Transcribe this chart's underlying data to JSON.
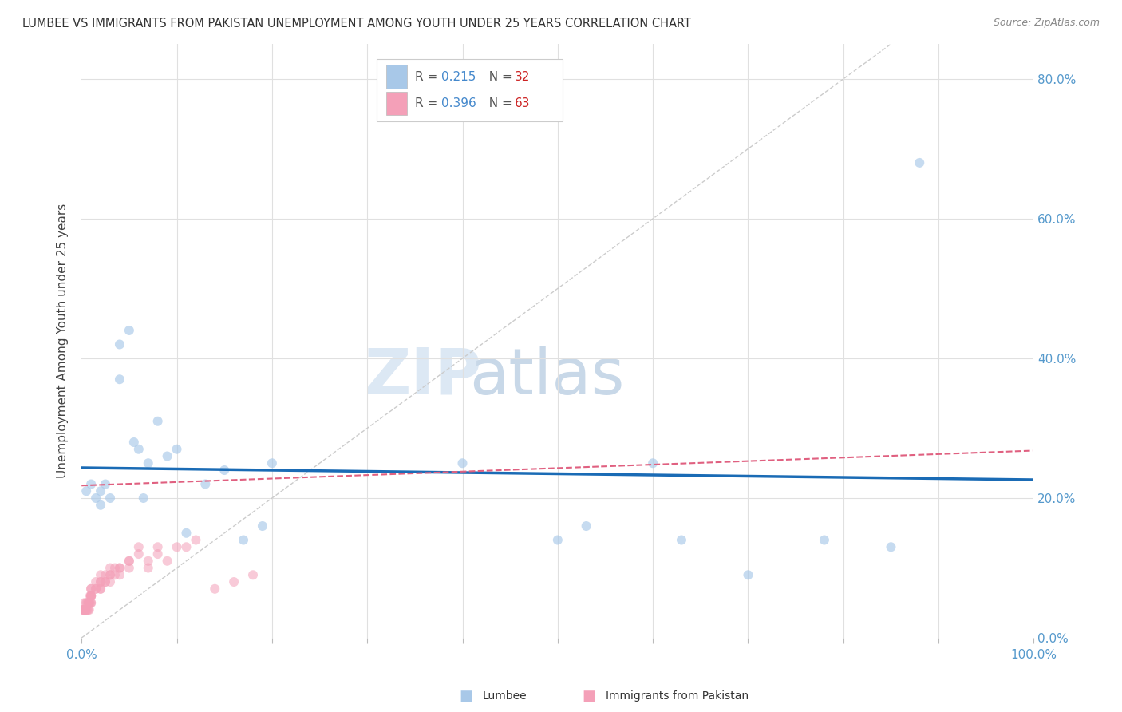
{
  "title": "LUMBEE VS IMMIGRANTS FROM PAKISTAN UNEMPLOYMENT AMONG YOUTH UNDER 25 YEARS CORRELATION CHART",
  "source": "Source: ZipAtlas.com",
  "ylabel": "Unemployment Among Youth under 25 years",
  "watermark_zip": "ZIP",
  "watermark_atlas": "atlas",
  "legend_lumbee_r_label": "R = ",
  "legend_lumbee_r_val": "0.215",
  "legend_lumbee_n_label": "  N = ",
  "legend_lumbee_n_val": "32",
  "legend_pakistan_r_label": "R = ",
  "legend_pakistan_r_val": "0.396",
  "legend_pakistan_n_label": "  N = ",
  "legend_pakistan_n_val": "63",
  "lumbee_color": "#a8c8e8",
  "lumbee_line_color": "#1a6bb5",
  "pakistan_color": "#f4a0b8",
  "pakistan_line_color": "#e06080",
  "lumbee_x": [
    0.005,
    0.01,
    0.015,
    0.02,
    0.02,
    0.025,
    0.03,
    0.04,
    0.04,
    0.05,
    0.055,
    0.06,
    0.065,
    0.07,
    0.08,
    0.09,
    0.1,
    0.11,
    0.13,
    0.15,
    0.17,
    0.19,
    0.2,
    0.4,
    0.5,
    0.53,
    0.6,
    0.63,
    0.7,
    0.78,
    0.85,
    0.88
  ],
  "lumbee_y": [
    0.21,
    0.22,
    0.2,
    0.21,
    0.19,
    0.22,
    0.2,
    0.37,
    0.42,
    0.44,
    0.28,
    0.27,
    0.2,
    0.25,
    0.31,
    0.26,
    0.27,
    0.15,
    0.22,
    0.24,
    0.14,
    0.16,
    0.25,
    0.25,
    0.14,
    0.16,
    0.25,
    0.14,
    0.09,
    0.14,
    0.13,
    0.68
  ],
  "pakistan_x": [
    0.001,
    0.002,
    0.002,
    0.003,
    0.003,
    0.003,
    0.004,
    0.004,
    0.005,
    0.005,
    0.006,
    0.006,
    0.007,
    0.007,
    0.008,
    0.008,
    0.008,
    0.009,
    0.009,
    0.01,
    0.01,
    0.01,
    0.01,
    0.01,
    0.01,
    0.01,
    0.01,
    0.015,
    0.015,
    0.015,
    0.02,
    0.02,
    0.02,
    0.02,
    0.02,
    0.025,
    0.025,
    0.025,
    0.03,
    0.03,
    0.03,
    0.03,
    0.035,
    0.035,
    0.04,
    0.04,
    0.04,
    0.05,
    0.05,
    0.05,
    0.06,
    0.06,
    0.07,
    0.07,
    0.08,
    0.08,
    0.09,
    0.1,
    0.11,
    0.12,
    0.14,
    0.16,
    0.18
  ],
  "pakistan_y": [
    0.04,
    0.04,
    0.04,
    0.04,
    0.04,
    0.05,
    0.04,
    0.04,
    0.04,
    0.05,
    0.04,
    0.05,
    0.04,
    0.05,
    0.04,
    0.05,
    0.05,
    0.05,
    0.06,
    0.05,
    0.05,
    0.06,
    0.06,
    0.06,
    0.07,
    0.07,
    0.06,
    0.07,
    0.07,
    0.08,
    0.07,
    0.07,
    0.08,
    0.08,
    0.09,
    0.08,
    0.08,
    0.09,
    0.08,
    0.09,
    0.09,
    0.1,
    0.09,
    0.1,
    0.09,
    0.1,
    0.1,
    0.1,
    0.11,
    0.11,
    0.12,
    0.13,
    0.1,
    0.11,
    0.12,
    0.13,
    0.11,
    0.13,
    0.13,
    0.14,
    0.07,
    0.08,
    0.09
  ],
  "xlim": [
    0.0,
    1.0
  ],
  "ylim": [
    0.0,
    0.85
  ],
  "xgrid_ticks": [
    0.0,
    0.1,
    0.2,
    0.3,
    0.4,
    0.5,
    0.6,
    0.7,
    0.8,
    0.9,
    1.0
  ],
  "ygrid_ticks": [
    0.0,
    0.2,
    0.4,
    0.6,
    0.8
  ],
  "right_ytick_labels": [
    "0.0%",
    "20.0%",
    "40.0%",
    "60.0%",
    "80.0%"
  ],
  "background_color": "#ffffff",
  "lumbee_scatter_alpha": 0.65,
  "pakistan_scatter_alpha": 0.55,
  "scatter_size": 75,
  "title_color": "#333333",
  "axis_label_color": "#5599cc",
  "source_color": "#888888",
  "grid_color": "#e0e0e0",
  "ref_line_color": "#cccccc",
  "r_val_color": "#4488cc",
  "n_val_color": "#cc2222"
}
